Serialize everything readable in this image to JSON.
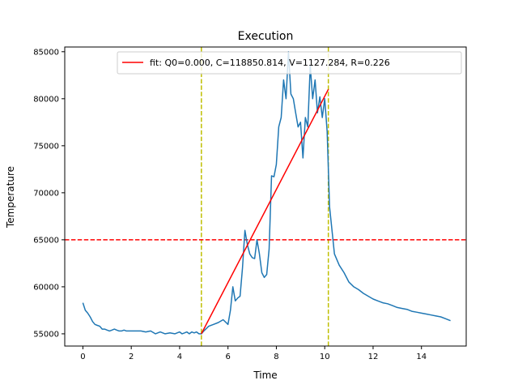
{
  "chart_data": {
    "type": "line",
    "title": "Execution",
    "xlabel": "Time",
    "ylabel": "Temperature",
    "xlim": [
      -0.75,
      15.85
    ],
    "ylim": [
      53700,
      85500
    ],
    "xticks": [
      0,
      2,
      4,
      6,
      8,
      10,
      12,
      14
    ],
    "yticks": [
      55000,
      60000,
      65000,
      70000,
      75000,
      80000,
      85000
    ],
    "grid": false,
    "legend": {
      "placement": "top-right",
      "entries": [
        "fit: Q0=0.000, C=118850.814, V=1127.284, R=0.226"
      ]
    },
    "colors": {
      "series": "#1f77b4",
      "fit": "#ff0000",
      "threshold": "#ff0000",
      "vlines": "#bfbf00"
    },
    "series": [
      {
        "x": [
          0.0,
          0.1,
          0.2,
          0.3,
          0.4,
          0.5,
          0.6,
          0.7,
          0.8,
          0.9,
          1.0,
          1.1,
          1.2,
          1.3,
          1.4,
          1.5,
          1.6,
          1.7,
          1.8,
          1.9,
          2.0,
          2.2,
          2.4,
          2.6,
          2.8,
          3.0,
          3.2,
          3.4,
          3.6,
          3.8,
          4.0,
          4.1,
          4.2,
          4.3,
          4.4,
          4.5,
          4.6,
          4.7,
          4.8,
          4.9,
          5.0,
          5.2,
          5.4,
          5.6,
          5.8,
          6.0,
          6.1,
          6.2,
          6.3,
          6.4,
          6.5,
          6.6,
          6.7,
          6.8,
          6.9,
          7.0,
          7.1,
          7.2,
          7.3,
          7.4,
          7.5,
          7.6,
          7.7,
          7.8,
          7.9,
          8.0,
          8.1,
          8.2,
          8.3,
          8.4,
          8.5,
          8.6,
          8.7,
          8.8,
          8.9,
          9.0,
          9.1,
          9.2,
          9.3,
          9.4,
          9.5,
          9.6,
          9.7,
          9.8,
          9.9,
          10.0,
          10.1,
          10.2,
          10.3,
          10.4,
          10.6,
          10.8,
          11.0,
          11.2,
          11.4,
          11.6,
          11.8,
          12.0,
          12.2,
          12.4,
          12.6,
          12.8,
          13.0,
          13.2,
          13.4,
          13.6,
          13.8,
          14.0,
          14.2,
          14.4,
          14.6,
          14.8,
          15.0,
          15.2
        ],
        "y": [
          58300,
          57500,
          57200,
          56800,
          56300,
          56000,
          55900,
          55800,
          55500,
          55500,
          55400,
          55300,
          55400,
          55500,
          55400,
          55300,
          55300,
          55400,
          55300,
          55300,
          55300,
          55300,
          55300,
          55200,
          55300,
          55000,
          55200,
          55000,
          55100,
          55000,
          55200,
          55000,
          55100,
          55200,
          55000,
          55200,
          55100,
          55200,
          55000,
          55000,
          55300,
          55800,
          56000,
          56200,
          56500,
          56000,
          57500,
          60000,
          58500,
          58800,
          59000,
          62000,
          66000,
          64500,
          63500,
          63100,
          63000,
          65000,
          63500,
          61500,
          61000,
          61300,
          64000,
          71800,
          71700,
          73000,
          77000,
          78000,
          82000,
          80000,
          85000,
          80500,
          80000,
          78500,
          77000,
          77500,
          73700,
          78000,
          77000,
          83500,
          80000,
          82000,
          78500,
          80200,
          78000,
          80000,
          76500,
          68500,
          66000,
          63500,
          62300,
          61500,
          60500,
          60000,
          59700,
          59300,
          59000,
          58700,
          58500,
          58300,
          58200,
          58000,
          57800,
          57700,
          57600,
          57400,
          57300,
          57200,
          57100,
          57000,
          56900,
          56800,
          56600,
          56400
        ]
      },
      {
        "name": "fit: Q0=0.000, C=118850.814, V=1127.284, R=0.226",
        "x": [
          4.9,
          10.15
        ],
        "y": [
          55000,
          81000
        ]
      }
    ],
    "hlines": [
      65000
    ],
    "vlines": [
      4.9,
      10.15
    ]
  }
}
